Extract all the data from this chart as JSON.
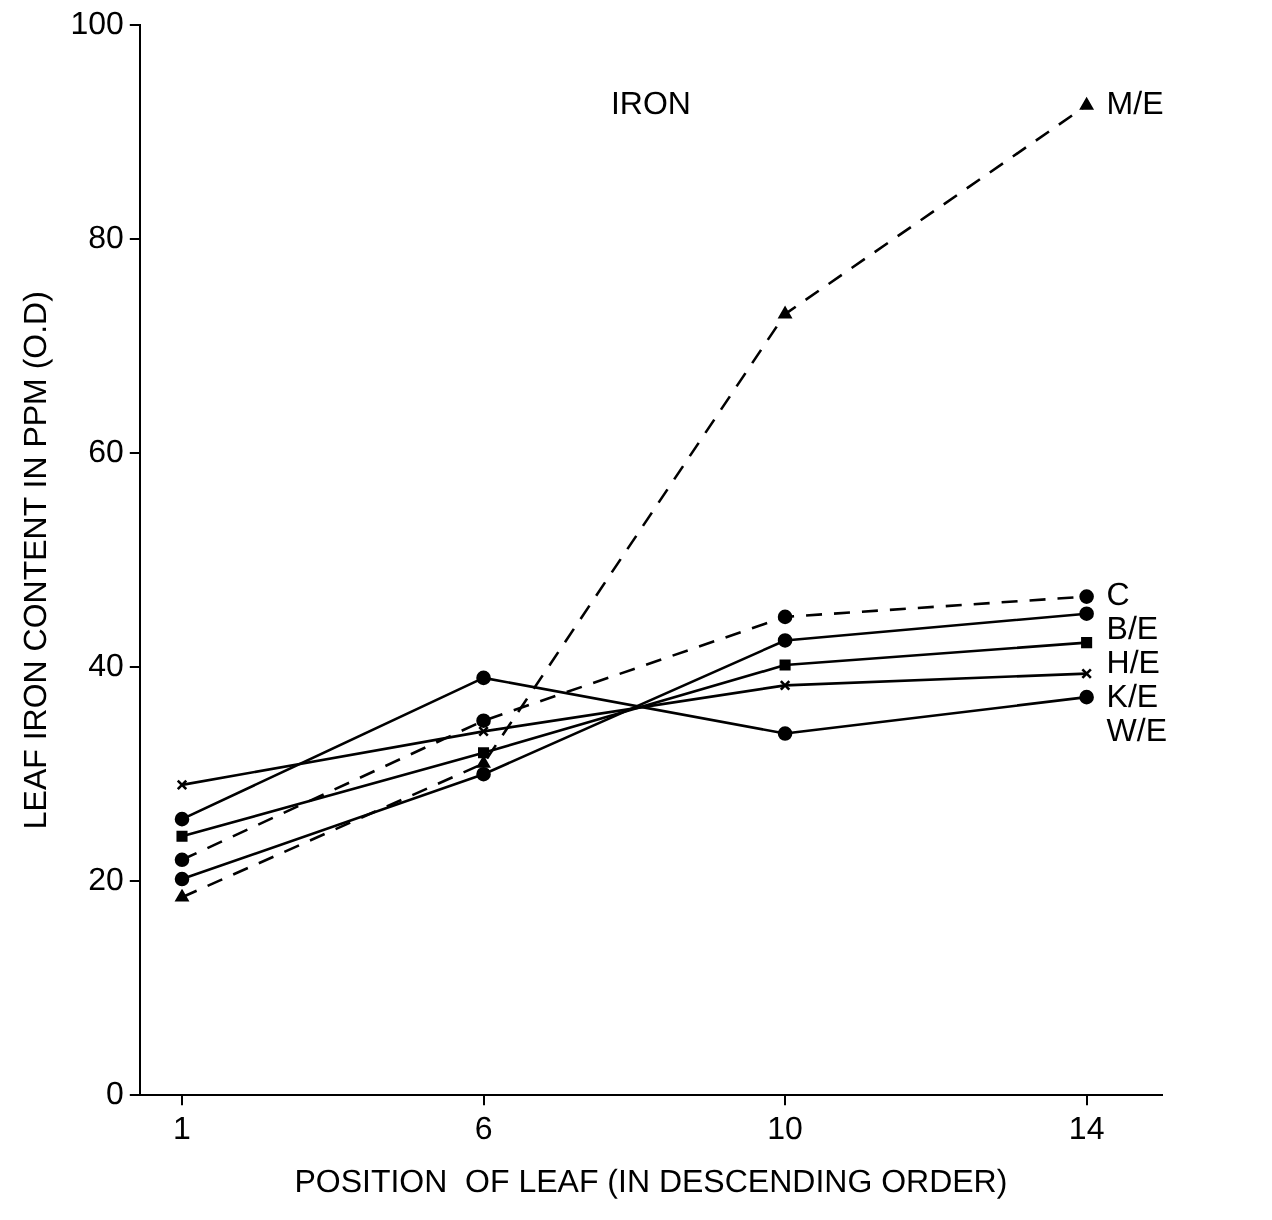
{
  "chart_data": {
    "type": "line",
    "title": "IRON",
    "xlabel": "POSITION  OF LEAF (IN DESCENDING ORDER)",
    "ylabel": "LEAF IRON CONTENT IN PPM (O.D)",
    "categories": [
      "1",
      "6",
      "10",
      "14"
    ],
    "ylim": [
      0,
      100
    ],
    "yticks": [
      0,
      20,
      40,
      60,
      80,
      100
    ],
    "grid": false,
    "legend": false,
    "series": [
      {
        "name": "M/E",
        "color": "#000000",
        "values": [
          18.5,
          31,
          73,
          92.5
        ],
        "line_style": "dashed",
        "marker": "triangle"
      },
      {
        "name": "C",
        "color": "#000000",
        "values": [
          22,
          35,
          44.7,
          46.6
        ],
        "line_style": "dashed",
        "marker": "circle"
      },
      {
        "name": "B/E",
        "color": "#000000",
        "values": [
          20.2,
          30,
          42.5,
          45
        ],
        "line_style": "solid",
        "marker": "circle"
      },
      {
        "name": "H/E",
        "color": "#000000",
        "values": [
          24.2,
          32,
          40.2,
          42.3
        ],
        "line_style": "solid",
        "marker": "square"
      },
      {
        "name": "K/E",
        "color": "#000000",
        "values": [
          29,
          34,
          38.3,
          39.4
        ],
        "line_style": "solid",
        "marker": "cross"
      },
      {
        "name": "W/E",
        "color": "#000000",
        "values": [
          25.8,
          39,
          33.8,
          37.2
        ],
        "line_style": "solid",
        "marker": "circle"
      }
    ]
  }
}
